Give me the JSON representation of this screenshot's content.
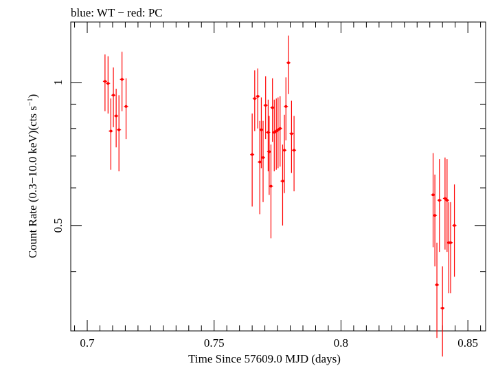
{
  "chart_data": {
    "type": "scatter",
    "title": "blue: WT − red: PC",
    "xlabel": "Time Since 57609.0 MJD (days)",
    "ylabel_main": "Count Rate (0.3−10.0 keV)(cts s",
    "ylabel_sup": "−1",
    "ylabel_close": ")",
    "xlim": [
      0.6935,
      0.857
    ],
    "ylim": [
      0.3,
      1.34
    ],
    "yscale": "log",
    "grid": false,
    "x_ticks": [
      0.7,
      0.75,
      0.8,
      0.85
    ],
    "x_tick_labels": [
      "0.7",
      "0.75",
      "0.8",
      "0.85"
    ],
    "y_tick_labels_at": [
      0.5,
      1
    ],
    "y_tick_labels": [
      "0.5",
      "1"
    ],
    "series": [
      {
        "color": "#ff0000",
        "points": [
          {
            "x": 0.707,
            "y": 1.005,
            "ylo": 0.87,
            "yhi": 1.145
          },
          {
            "x": 0.7082,
            "y": 0.995,
            "ylo": 0.86,
            "yhi": 1.135
          },
          {
            "x": 0.7093,
            "y": 0.79,
            "ylo": 0.655,
            "yhi": 0.925
          },
          {
            "x": 0.7103,
            "y": 0.94,
            "ylo": 0.805,
            "yhi": 1.075
          },
          {
            "x": 0.7114,
            "y": 0.85,
            "ylo": 0.73,
            "yhi": 0.97
          },
          {
            "x": 0.7125,
            "y": 0.795,
            "ylo": 0.65,
            "yhi": 0.94
          },
          {
            "x": 0.7137,
            "y": 1.015,
            "ylo": 0.87,
            "yhi": 1.16
          },
          {
            "x": 0.7153,
            "y": 0.89,
            "ylo": 0.76,
            "yhi": 1.02
          },
          {
            "x": 0.765,
            "y": 0.705,
            "ylo": 0.548,
            "yhi": 0.86
          },
          {
            "x": 0.766,
            "y": 0.925,
            "ylo": 0.79,
            "yhi": 1.06
          },
          {
            "x": 0.7672,
            "y": 0.935,
            "ylo": 0.8,
            "yhi": 1.07
          },
          {
            "x": 0.768,
            "y": 0.68,
            "ylo": 0.528,
            "yhi": 0.83
          },
          {
            "x": 0.7686,
            "y": 0.795,
            "ylo": 0.66,
            "yhi": 0.93
          },
          {
            "x": 0.7693,
            "y": 0.695,
            "ylo": 0.56,
            "yhi": 0.83
          },
          {
            "x": 0.7703,
            "y": 0.895,
            "ylo": 0.76,
            "yhi": 1.03
          },
          {
            "x": 0.7713,
            "y": 0.785,
            "ylo": 0.65,
            "yhi": 0.92
          },
          {
            "x": 0.7717,
            "y": 0.715,
            "ylo": 0.58,
            "yhi": 0.85
          },
          {
            "x": 0.7724,
            "y": 0.605,
            "ylo": 0.47,
            "yhi": 0.74
          },
          {
            "x": 0.773,
            "y": 0.885,
            "ylo": 0.75,
            "yhi": 1.02
          },
          {
            "x": 0.7737,
            "y": 0.785,
            "ylo": 0.65,
            "yhi": 0.92
          },
          {
            "x": 0.7745,
            "y": 0.79,
            "ylo": 0.655,
            "yhi": 0.925
          },
          {
            "x": 0.7752,
            "y": 0.795,
            "ylo": 0.66,
            "yhi": 0.93
          },
          {
            "x": 0.776,
            "y": 0.8,
            "ylo": 0.665,
            "yhi": 0.935
          },
          {
            "x": 0.777,
            "y": 0.62,
            "ylo": 0.5,
            "yhi": 0.74
          },
          {
            "x": 0.7777,
            "y": 0.72,
            "ylo": 0.585,
            "yhi": 0.855
          },
          {
            "x": 0.7783,
            "y": 0.89,
            "ylo": 0.755,
            "yhi": 1.025
          },
          {
            "x": 0.7793,
            "y": 1.1,
            "ylo": 0.945,
            "yhi": 1.255
          },
          {
            "x": 0.7805,
            "y": 0.78,
            "ylo": 0.645,
            "yhi": 0.915
          },
          {
            "x": 0.7815,
            "y": 0.72,
            "ylo": 0.59,
            "yhi": 0.85
          },
          {
            "x": 0.8363,
            "y": 0.58,
            "ylo": 0.45,
            "yhi": 0.71
          },
          {
            "x": 0.837,
            "y": 0.525,
            "ylo": 0.41,
            "yhi": 0.64
          },
          {
            "x": 0.8378,
            "y": 0.375,
            "ylo": 0.29,
            "yhi": 0.46
          },
          {
            "x": 0.8388,
            "y": 0.565,
            "ylo": 0.44,
            "yhi": 0.69
          },
          {
            "x": 0.84,
            "y": 0.335,
            "ylo": 0.265,
            "yhi": 0.41
          },
          {
            "x": 0.841,
            "y": 0.57,
            "ylo": 0.445,
            "yhi": 0.695
          },
          {
            "x": 0.8418,
            "y": 0.565,
            "ylo": 0.44,
            "yhi": 0.69
          },
          {
            "x": 0.8425,
            "y": 0.46,
            "ylo": 0.36,
            "yhi": 0.56
          },
          {
            "x": 0.8432,
            "y": 0.46,
            "ylo": 0.36,
            "yhi": 0.56
          },
          {
            "x": 0.8447,
            "y": 0.5,
            "ylo": 0.39,
            "yhi": 0.61
          }
        ]
      }
    ]
  }
}
